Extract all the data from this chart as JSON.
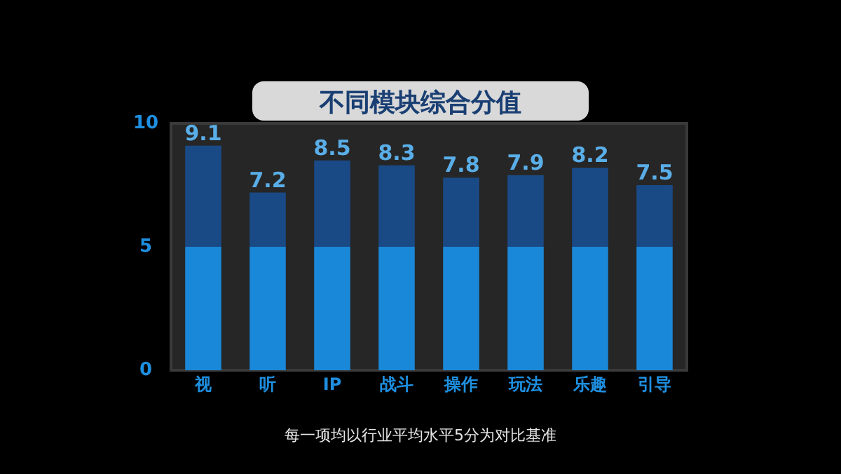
{
  "chart_data": {
    "type": "bar",
    "title": "不同模块综合分值",
    "categories": [
      "视",
      "听",
      "IP",
      "战斗",
      "操作",
      "玩法",
      "乐趣",
      "引导"
    ],
    "stacked": true,
    "series": [
      {
        "color": "#1a88d8",
        "values": [
          5,
          5,
          5,
          5,
          5,
          5,
          5,
          5
        ]
      },
      {
        "color": "#1a4a86",
        "values": [
          4.1,
          2.2,
          3.5,
          3.3,
          2.8,
          2.9,
          3.2,
          2.5
        ]
      }
    ],
    "totals": [
      "9.1",
      "7.2",
      "8.5",
      "8.3",
      "7.8",
      "7.9",
      "8.2",
      "7.5"
    ],
    "ylim": [
      0,
      10
    ],
    "yticks": [
      0,
      5,
      10
    ],
    "annotations": [
      "每一项均以行业平均水平5分为对比基准"
    ]
  }
}
